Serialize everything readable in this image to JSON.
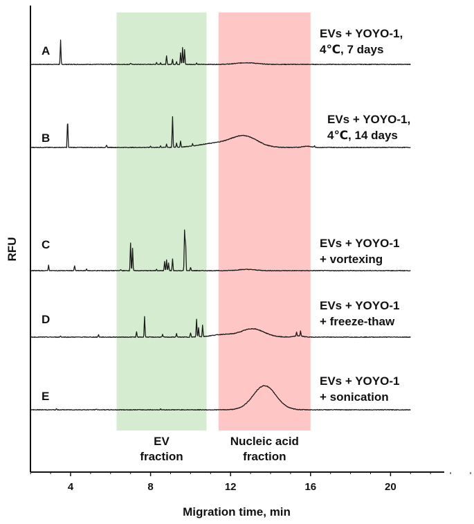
{
  "chart_data": {
    "type": "line",
    "title": "",
    "xlabel": "Migration time, min",
    "ylabel": "RFU",
    "xlim": [
      2,
      24
    ],
    "xticks": [
      4,
      8,
      12,
      16,
      20
    ],
    "grid": false,
    "regions": [
      {
        "name": "ev-fraction",
        "x_start": 6.3,
        "x_end": 10.8,
        "color": "#d6ecd0",
        "label_lines": [
          "EV",
          "fraction"
        ]
      },
      {
        "name": "nucleic-acid-fraction",
        "x_start": 11.4,
        "x_end": 16.0,
        "color": "#ffc6c6",
        "label_lines": [
          "Nucleic acid",
          "fraction"
        ]
      }
    ],
    "series": [
      {
        "id": "A",
        "letter": "A",
        "label_lines": [
          "EVs + YOYO-1,",
          "4℃, 7 days"
        ],
        "x_end": 21.0,
        "baseline_offset": 0,
        "spikes": [
          [
            3.5,
            58
          ],
          [
            8.8,
            20
          ],
          [
            9.1,
            12
          ],
          [
            9.5,
            28
          ],
          [
            9.6,
            40
          ],
          [
            9.7,
            36
          ],
          [
            7.0,
            3
          ],
          [
            8.3,
            5
          ],
          [
            8.5,
            4
          ],
          [
            9.3,
            6
          ],
          [
            6.0,
            2
          ],
          [
            10.3,
            3
          ]
        ],
        "bumps": [
          [
            12.8,
            0.7,
            4
          ]
        ]
      },
      {
        "id": "B",
        "letter": "B",
        "label_lines": [
          "EVs + YOYO-1,",
          "4℃, 14 days"
        ],
        "x_end": 21.0,
        "baseline_offset": 0,
        "spikes": [
          [
            3.85,
            72
          ],
          [
            5.8,
            5
          ],
          [
            8.8,
            8
          ],
          [
            9.1,
            73
          ],
          [
            9.3,
            10
          ],
          [
            9.5,
            14
          ],
          [
            8.5,
            4
          ],
          [
            8.0,
            3
          ],
          [
            10.1,
            5
          ],
          [
            16.2,
            4
          ]
        ],
        "bumps": [
          [
            12.7,
            0.9,
            26
          ],
          [
            11.3,
            1.2,
            10
          ],
          [
            15.8,
            0.3,
            3
          ]
        ]
      },
      {
        "id": "C",
        "letter": "C",
        "label_lines": [
          "EVs + YOYO-1",
          "+ vortexing"
        ],
        "x_end": 21.0,
        "baseline_offset": 0,
        "spikes": [
          [
            2.9,
            13
          ],
          [
            4.2,
            12
          ],
          [
            4.8,
            4
          ],
          [
            7.0,
            67
          ],
          [
            7.1,
            54
          ],
          [
            8.7,
            22
          ],
          [
            8.8,
            26
          ],
          [
            8.9,
            18
          ],
          [
            9.1,
            28
          ],
          [
            9.7,
            98
          ],
          [
            9.75,
            76
          ],
          [
            10.0,
            8
          ],
          [
            6.5,
            3
          ],
          [
            8.3,
            4
          ]
        ],
        "bumps": [
          [
            12.8,
            0.6,
            3
          ]
        ]
      },
      {
        "id": "D",
        "letter": "D",
        "label_lines": [
          "EVs + YOYO-1",
          "+ freeze-thaw"
        ],
        "x_end": 21.0,
        "baseline_offset": 0,
        "spikes": [
          [
            3.5,
            3
          ],
          [
            5.4,
            6
          ],
          [
            7.3,
            13
          ],
          [
            7.7,
            50
          ],
          [
            8.6,
            6
          ],
          [
            9.3,
            9
          ],
          [
            10.0,
            10
          ],
          [
            10.3,
            43
          ],
          [
            10.4,
            22
          ],
          [
            10.6,
            28
          ],
          [
            15.3,
            9
          ],
          [
            15.5,
            12
          ]
        ],
        "bumps": [
          [
            13.1,
            0.8,
            20
          ],
          [
            11.6,
            0.8,
            6
          ],
          [
            15.4,
            0.3,
            3
          ]
        ]
      },
      {
        "id": "E",
        "letter": "E",
        "label_lines": [
          "EVs + YOYO-1",
          "+ sonication"
        ],
        "x_end": 21.0,
        "baseline_offset": 0,
        "spikes": [
          [
            3.3,
            2
          ],
          [
            5.3,
            2
          ],
          [
            8.5,
            2
          ]
        ],
        "bumps": [
          [
            13.7,
            0.8,
            58
          ]
        ]
      }
    ]
  }
}
